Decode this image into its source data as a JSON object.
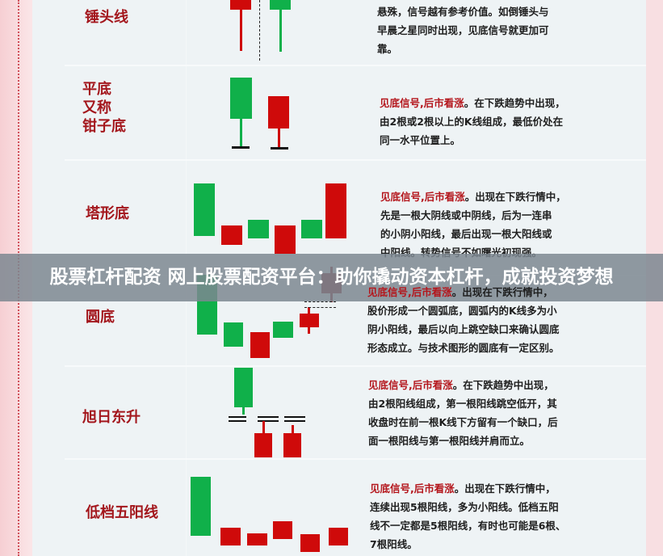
{
  "patterns": [
    {
      "name": "锤头线",
      "desc_lines": [
        "悬殊，信号越有参考价值。如倒锤头与",
        "早晨之星同时出现，见底信号就更加可",
        "靠。"
      ]
    },
    {
      "name": "平底\n又称\n钳子底",
      "label_lines": [
        "平底",
        "又称",
        "钳子底"
      ],
      "highlight": "见底信号,后市看涨",
      "desc_first": "。在下跌趋势中出现，",
      "desc_lines": [
        "由2根或2根以上的K线组成，最低价处在",
        "同一水平位置上。"
      ]
    },
    {
      "name": "塔形底",
      "highlight": "见底信号,后市看涨",
      "desc_first": "。出现在下跌行情中，",
      "desc_lines": [
        "先是一根大阴线或中阴线，后为一连串",
        "的小阴小阳线，最后出现一根大阳线或",
        "中阳线。转势信号不如曙光初现强。"
      ]
    },
    {
      "name": "圆底",
      "highlight": "见底信号,后市看涨",
      "desc_first": "。出现在下跌行情中，",
      "desc_lines": [
        "股价形成一个圆弧底，圆弧内的K线多为小",
        "阴小阳线，最后以向上跳空缺口来确认圆底",
        "形态成立。与技术图形的圆底有一定区别。"
      ]
    },
    {
      "name": "旭日东升",
      "highlight": "见底信号,后市看涨",
      "desc_first": "。在下跌趋势中出现，",
      "desc_lines": [
        "由2根阳线组成，第一根阳线跳空低开，其",
        "收盘时在前一根K线下方留有一个缺口，后",
        "面一根阳线与第一根阳线并肩而立。"
      ]
    },
    {
      "name": "低档五阳线",
      "highlight": "见底信号,后市看涨",
      "desc_first": "。出现在下跌行情中，",
      "desc_lines": [
        "连续出现5根阳线，多为小阳线。低档五阳",
        "线不一定都是5根阳线，有时也可能是6根、",
        "7根阳线。"
      ]
    }
  ],
  "banner": "股票杠杆配资 网上股票配资平台：助你撬动资本杠杆，成就投资梦想",
  "colors": {
    "up": "#cf0a0a",
    "down": "#10b04a",
    "label": "#a3161c"
  }
}
